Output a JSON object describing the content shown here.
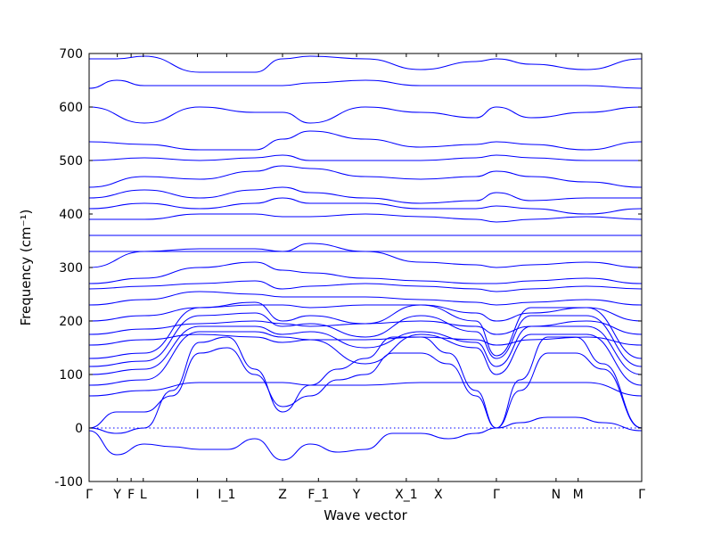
{
  "chart_data": {
    "type": "line",
    "xlabel": "Wave vector",
    "ylabel": "Frequency (cm⁻¹)",
    "ylim": [
      -100,
      700
    ],
    "yticks": [
      -100,
      0,
      100,
      200,
      300,
      400,
      500,
      600,
      700
    ],
    "xlim": [
      0,
      1
    ],
    "x_ticks": [
      {
        "label": "Γ",
        "x": 0.0
      },
      {
        "label": "Y",
        "x": 0.051
      },
      {
        "label": "F",
        "x": 0.076
      },
      {
        "label": "L",
        "x": 0.098
      },
      {
        "label": "I",
        "x": 0.196
      },
      {
        "label": "I_1",
        "x": 0.249
      },
      {
        "label": "Z",
        "x": 0.35
      },
      {
        "label": "F_1",
        "x": 0.415
      },
      {
        "label": "Y",
        "x": 0.484
      },
      {
        "label": "X_1",
        "x": 0.574
      },
      {
        "label": "X",
        "x": 0.632
      },
      {
        "label": "Γ",
        "x": 0.737
      },
      {
        "label": "N",
        "x": 0.845
      },
      {
        "label": "M",
        "x": 0.885
      },
      {
        "label": "Γ",
        "x": 1.0
      }
    ],
    "zero_line": {
      "y": 0,
      "style": "dotted",
      "color": "#0000ff"
    },
    "series_color": "#0000ff",
    "grid": false,
    "legend": "none",
    "series": [
      {
        "x": [
          0,
          0.05,
          0.1,
          0.15,
          0.2,
          0.25,
          0.3,
          0.35,
          0.4,
          0.45,
          0.5,
          0.55,
          0.6,
          0.65,
          0.7,
          0.737,
          0.78,
          0.83,
          0.88,
          0.93,
          1.0
        ],
        "values": [
          0,
          30,
          30,
          60,
          140,
          150,
          100,
          40,
          60,
          90,
          100,
          140,
          140,
          120,
          60,
          0,
          70,
          140,
          140,
          110,
          0
        ]
      },
      {
        "x": [
          0,
          0.05,
          0.1,
          0.15,
          0.2,
          0.25,
          0.3,
          0.35,
          0.4,
          0.45,
          0.5,
          0.55,
          0.6,
          0.65,
          0.7,
          0.737,
          0.78,
          0.83,
          0.88,
          0.93,
          1.0
        ],
        "values": [
          0,
          -10,
          0,
          70,
          160,
          170,
          110,
          30,
          80,
          110,
          130,
          170,
          170,
          140,
          70,
          0,
          90,
          170,
          170,
          120,
          0
        ]
      },
      {
        "x": [
          0,
          0.05,
          0.1,
          0.15,
          0.2,
          0.25,
          0.3,
          0.35,
          0.4,
          0.45,
          0.5,
          0.55,
          0.6,
          0.65,
          0.7,
          0.737,
          0.78,
          0.83,
          0.88,
          0.93,
          1.0
        ],
        "values": [
          -5,
          -50,
          -30,
          -35,
          -40,
          -40,
          -20,
          -60,
          -30,
          -45,
          -40,
          -10,
          -10,
          -20,
          -10,
          0,
          10,
          20,
          20,
          10,
          -5
        ]
      },
      {
        "x": [
          0,
          0.1,
          0.2,
          0.3,
          0.35,
          0.4,
          0.5,
          0.6,
          0.7,
          0.737,
          0.8,
          0.9,
          1.0
        ],
        "values": [
          60,
          70,
          85,
          85,
          85,
          80,
          80,
          85,
          85,
          85,
          85,
          85,
          60
        ]
      },
      {
        "x": [
          0,
          0.1,
          0.2,
          0.3,
          0.35,
          0.4,
          0.5,
          0.6,
          0.7,
          0.737,
          0.8,
          0.9,
          1.0
        ],
        "values": [
          80,
          90,
          180,
          180,
          170,
          165,
          120,
          175,
          150,
          100,
          175,
          175,
          80
        ]
      },
      {
        "x": [
          0,
          0.1,
          0.2,
          0.3,
          0.35,
          0.4,
          0.5,
          0.6,
          0.7,
          0.737,
          0.8,
          0.9,
          1.0
        ],
        "values": [
          100,
          110,
          190,
          190,
          175,
          180,
          150,
          180,
          160,
          115,
          190,
          190,
          100
        ]
      },
      {
        "x": [
          0,
          0.1,
          0.2,
          0.3,
          0.35,
          0.4,
          0.5,
          0.6,
          0.7,
          0.737,
          0.8,
          0.9,
          1.0
        ],
        "values": [
          115,
          125,
          210,
          215,
          190,
          195,
          170,
          210,
          180,
          130,
          210,
          210,
          115
        ]
      },
      {
        "x": [
          0,
          0.1,
          0.2,
          0.3,
          0.35,
          0.4,
          0.5,
          0.6,
          0.7,
          0.737,
          0.8,
          0.9,
          1.0
        ],
        "values": [
          130,
          140,
          225,
          235,
          200,
          210,
          195,
          230,
          200,
          135,
          225,
          225,
          130
        ]
      },
      {
        "x": [
          0,
          0.1,
          0.2,
          0.3,
          0.35,
          0.4,
          0.5,
          0.6,
          0.7,
          0.737,
          0.8,
          0.9,
          1.0
        ],
        "values": [
          155,
          165,
          175,
          170,
          160,
          165,
          165,
          170,
          165,
          155,
          165,
          170,
          155
        ]
      },
      {
        "x": [
          0,
          0.1,
          0.2,
          0.3,
          0.35,
          0.4,
          0.5,
          0.6,
          0.7,
          0.737,
          0.8,
          0.9,
          1.0
        ],
        "values": [
          175,
          185,
          195,
          200,
          195,
          190,
          195,
          200,
          190,
          175,
          190,
          200,
          175
        ]
      },
      {
        "x": [
          0,
          0.1,
          0.2,
          0.3,
          0.35,
          0.4,
          0.5,
          0.6,
          0.7,
          0.737,
          0.8,
          0.9,
          1.0
        ],
        "values": [
          200,
          210,
          225,
          230,
          230,
          225,
          230,
          230,
          215,
          200,
          215,
          225,
          200
        ]
      },
      {
        "x": [
          0,
          0.1,
          0.2,
          0.3,
          0.35,
          0.4,
          0.5,
          0.6,
          0.7,
          0.737,
          0.8,
          0.9,
          1.0
        ],
        "values": [
          230,
          240,
          255,
          250,
          245,
          245,
          245,
          240,
          235,
          230,
          235,
          240,
          230
        ]
      },
      {
        "x": [
          0,
          0.1,
          0.2,
          0.3,
          0.35,
          0.4,
          0.5,
          0.6,
          0.7,
          0.737,
          0.8,
          0.9,
          1.0
        ],
        "values": [
          260,
          265,
          270,
          275,
          260,
          265,
          270,
          265,
          260,
          255,
          260,
          265,
          260
        ]
      },
      {
        "x": [
          0,
          0.1,
          0.2,
          0.3,
          0.35,
          0.4,
          0.5,
          0.6,
          0.7,
          0.737,
          0.8,
          0.9,
          1.0
        ],
        "values": [
          270,
          280,
          300,
          310,
          295,
          290,
          280,
          275,
          270,
          270,
          275,
          280,
          270
        ]
      },
      {
        "x": [
          0,
          0.1,
          0.2,
          0.3,
          0.35,
          0.4,
          0.5,
          0.6,
          0.7,
          0.737,
          0.8,
          0.9,
          1.0
        ],
        "values": [
          300,
          330,
          335,
          335,
          330,
          345,
          330,
          310,
          305,
          300,
          305,
          310,
          300
        ]
      },
      {
        "x": [
          0,
          0.1,
          0.2,
          0.3,
          0.35,
          0.4,
          0.5,
          0.6,
          0.7,
          0.737,
          0.8,
          0.9,
          1.0
        ],
        "values": [
          330,
          330,
          330,
          330,
          330,
          330,
          330,
          330,
          330,
          330,
          330,
          330,
          330
        ]
      },
      {
        "x": [
          0,
          1.0
        ],
        "values": [
          360,
          360
        ]
      },
      {
        "x": [
          0,
          0.1,
          0.2,
          0.3,
          0.35,
          0.4,
          0.5,
          0.6,
          0.7,
          0.737,
          0.8,
          0.9,
          1.0
        ],
        "values": [
          390,
          390,
          400,
          400,
          395,
          395,
          400,
          395,
          390,
          385,
          390,
          395,
          390
        ]
      },
      {
        "x": [
          0,
          0.1,
          0.2,
          0.3,
          0.35,
          0.4,
          0.5,
          0.6,
          0.7,
          0.737,
          0.8,
          0.9,
          1.0
        ],
        "values": [
          410,
          420,
          410,
          420,
          430,
          420,
          420,
          410,
          410,
          415,
          410,
          400,
          410
        ]
      },
      {
        "x": [
          0,
          0.1,
          0.2,
          0.3,
          0.35,
          0.4,
          0.5,
          0.6,
          0.7,
          0.737,
          0.8,
          0.9,
          1.0
        ],
        "values": [
          430,
          445,
          430,
          445,
          450,
          440,
          430,
          420,
          425,
          440,
          425,
          430,
          430
        ]
      },
      {
        "x": [
          0,
          0.1,
          0.2,
          0.3,
          0.35,
          0.4,
          0.5,
          0.6,
          0.7,
          0.737,
          0.8,
          0.9,
          1.0
        ],
        "values": [
          450,
          470,
          465,
          480,
          490,
          485,
          470,
          465,
          470,
          480,
          470,
          460,
          450
        ]
      },
      {
        "x": [
          0,
          0.1,
          0.2,
          0.3,
          0.35,
          0.4,
          0.5,
          0.6,
          0.7,
          0.737,
          0.8,
          0.9,
          1.0
        ],
        "values": [
          500,
          505,
          500,
          505,
          510,
          500,
          500,
          500,
          505,
          510,
          505,
          500,
          500
        ]
      },
      {
        "x": [
          0,
          0.1,
          0.2,
          0.3,
          0.35,
          0.4,
          0.5,
          0.6,
          0.7,
          0.737,
          0.8,
          0.9,
          1.0
        ],
        "values": [
          535,
          530,
          520,
          520,
          540,
          555,
          540,
          525,
          530,
          535,
          530,
          520,
          535
        ]
      },
      {
        "x": [
          0,
          0.1,
          0.2,
          0.3,
          0.35,
          0.4,
          0.5,
          0.6,
          0.7,
          0.737,
          0.8,
          0.9,
          1.0
        ],
        "values": [
          600,
          570,
          600,
          590,
          590,
          570,
          600,
          590,
          580,
          600,
          580,
          590,
          600
        ]
      },
      {
        "x": [
          0,
          0.05,
          0.1,
          0.2,
          0.3,
          0.35,
          0.4,
          0.5,
          0.6,
          0.7,
          0.737,
          0.8,
          0.9,
          1.0
        ],
        "values": [
          635,
          650,
          640,
          640,
          640,
          640,
          645,
          650,
          640,
          640,
          640,
          640,
          640,
          635
        ]
      },
      {
        "x": [
          0,
          0.05,
          0.1,
          0.2,
          0.3,
          0.35,
          0.4,
          0.5,
          0.6,
          0.7,
          0.737,
          0.8,
          0.9,
          1.0
        ],
        "values": [
          690,
          690,
          695,
          665,
          665,
          690,
          695,
          690,
          670,
          685,
          690,
          680,
          670,
          690
        ]
      }
    ]
  }
}
